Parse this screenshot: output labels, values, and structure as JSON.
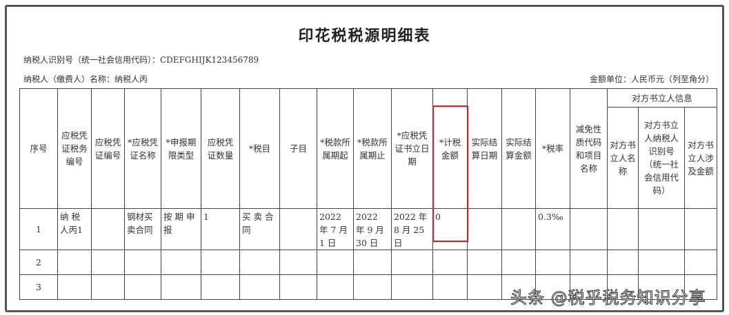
{
  "title": "印花税税源明细表",
  "taxpayer_id_line": "纳税人识别号（统一社会信用代码）：CDEFGHIJK123456789",
  "taxpayer_name_line": "纳税人（缴费人）名称：纳税人丙",
  "unit_line": "金额单位：人民币元（列至角分）",
  "group_header": "对方书立人信息",
  "headers": [
    "序号",
    "应税凭证税务编号",
    "应税凭证编号",
    "*应税凭证名称",
    "*申报期限类型",
    "应税凭证数量",
    "*税目",
    "子目",
    "*税款所属期起",
    "*税款所属期止",
    "*应税凭证书立日期",
    "*计税金额",
    "实际结算日期",
    "实际结算金额",
    "*税率",
    "减免性质代码和项目名称",
    "对方书立人名称",
    "对方书立人纳税人识别号（统一社会信用代码）",
    "对方书立人涉及金额"
  ],
  "rows": [
    [
      "1",
      "纳 税 人丙1",
      "",
      "钢材买卖合同",
      "按 期 申 报",
      "1",
      "买 卖 合 同",
      "",
      "2022 年 7 月 1 日",
      "2022 年 9 月 30 日",
      "2022 年 8 月 25 日",
      "0",
      "",
      "",
      "0.3‰",
      "",
      "",
      "",
      ""
    ],
    [
      "2",
      "",
      "",
      "",
      "",
      "",
      "",
      "",
      "",
      "",
      "",
      "",
      "",
      "",
      "",
      "",
      "",
      "",
      ""
    ],
    [
      "3",
      "",
      "",
      "",
      "",
      "",
      "",
      "",
      "",
      "",
      "",
      "",
      "",
      "",
      "",
      "",
      "",
      "",
      ""
    ]
  ],
  "highlight_color": "#d32020",
  "watermark": "头条 @税乎税务知识分享"
}
